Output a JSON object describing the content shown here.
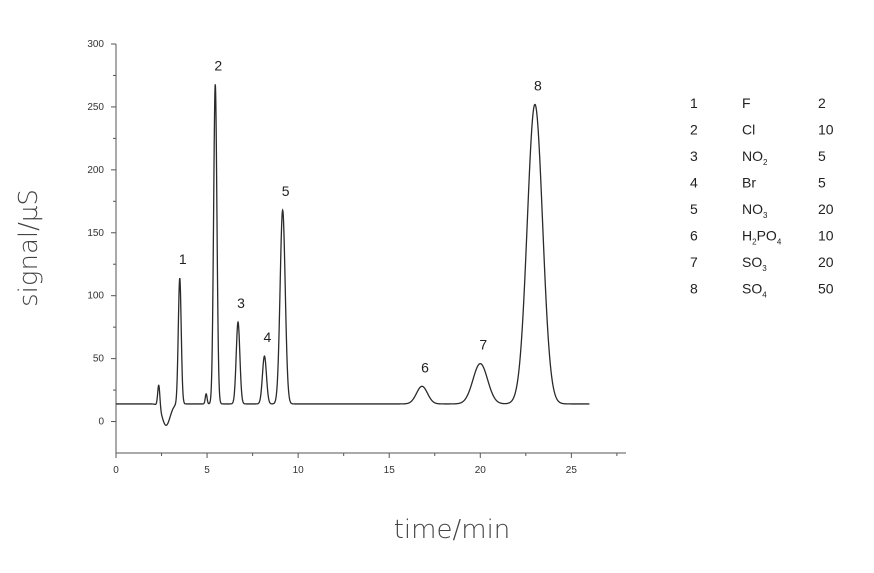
{
  "chart_data": {
    "type": "line",
    "xlabel": "time/min",
    "ylabel": "signal/µS",
    "xlim": [
      0,
      28
    ],
    "ylim": [
      -25,
      300
    ],
    "xticks": [
      "0",
      "5",
      "10",
      "15",
      "20",
      "25"
    ],
    "yticks": [
      "0",
      "50",
      "100",
      "150",
      "200",
      "250",
      "300"
    ],
    "baseline": 14,
    "peaks": [
      {
        "label": "1",
        "t": 3.5,
        "height": 114,
        "width": 0.08
      },
      {
        "label": "2",
        "t": 5.45,
        "height": 268,
        "width": 0.09
      },
      {
        "label": "3",
        "t": 6.7,
        "height": 79,
        "width": 0.1
      },
      {
        "label": "4",
        "t": 8.15,
        "height": 52,
        "width": 0.11
      },
      {
        "label": "5",
        "t": 9.15,
        "height": 168,
        "width": 0.14
      },
      {
        "label": "6",
        "t": 16.8,
        "height": 28,
        "width": 0.3
      },
      {
        "label": "7",
        "t": 20.0,
        "height": 46,
        "width": 0.4
      },
      {
        "label": "8",
        "t": 23.0,
        "height": 252,
        "width": 0.42
      }
    ],
    "legend": [
      {
        "num": "1",
        "ion": "F",
        "sub": "",
        "ion2": "",
        "sub2": "",
        "conc": "2"
      },
      {
        "num": "2",
        "ion": "Cl",
        "sub": "",
        "ion2": "",
        "sub2": "",
        "conc": "10"
      },
      {
        "num": "3",
        "ion": "NO",
        "sub": "2",
        "ion2": "",
        "sub2": "",
        "conc": "5"
      },
      {
        "num": "4",
        "ion": "Br",
        "sub": "",
        "ion2": "",
        "sub2": "",
        "conc": "5"
      },
      {
        "num": "5",
        "ion": "NO",
        "sub": "3",
        "ion2": "",
        "sub2": "",
        "conc": "20"
      },
      {
        "num": "6",
        "ion": "H",
        "sub": "2",
        "ion2": "PO",
        "sub2": "4",
        "conc": "10"
      },
      {
        "num": "7",
        "ion": "SO",
        "sub": "3",
        "ion2": "",
        "sub2": "",
        "conc": "20"
      },
      {
        "num": "8",
        "ion": "SO",
        "sub": "4",
        "ion2": "",
        "sub2": "",
        "conc": "50"
      }
    ]
  }
}
